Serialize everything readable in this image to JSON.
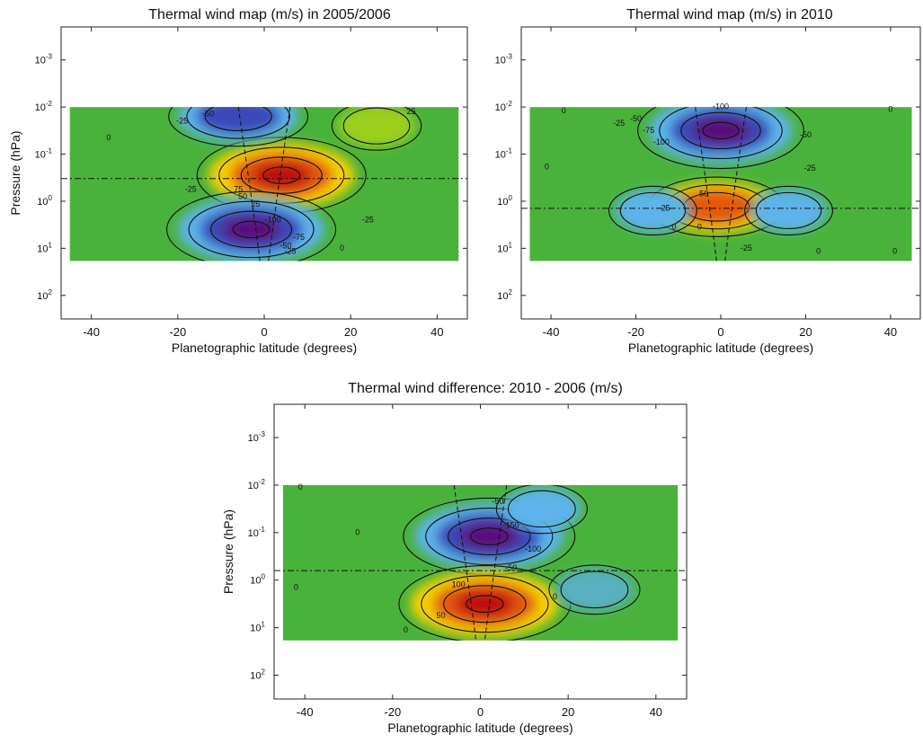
{
  "chart_data": [
    {
      "type": "heatmap",
      "title": "Thermal wind map (m/s) in 2005/2006",
      "xlabel": "Planetographic latitude (degrees)",
      "ylabel": "Pressure (hPa)",
      "xlim": [
        -47,
        47
      ],
      "x_ticks": [
        -40,
        -20,
        0,
        20,
        40
      ],
      "x_tick_labels": [
        "-40",
        "-20",
        "0",
        "20",
        "40"
      ],
      "y_scale": "log",
      "y_range_exponent": [
        -3.7,
        2.5
      ],
      "y_tick_exponents": [
        -3,
        -2,
        -1,
        0,
        1,
        2
      ],
      "data_extent": {
        "lat": [
          -45,
          45
        ],
        "pressure_exponent": [
          -2,
          1.27
        ]
      },
      "colormap": [
        "#5a0f7a",
        "#3a4ab8",
        "#5db3ea",
        "#49b23a",
        "#9bd01c",
        "#f4d000",
        "#e45a10",
        "#c01010"
      ],
      "colormap_note": "blue/purple = negative, green = ~0, yellow/red = positive",
      "features": [
        {
          "kind": "max",
          "lat": 4,
          "pressure_exponent": -0.55,
          "value": 125,
          "color": "#c01010"
        },
        {
          "kind": "min",
          "lat": -3,
          "pressure_exponent": 0.6,
          "value": -125,
          "color": "#5a0f7a"
        },
        {
          "kind": "min",
          "lat": -6,
          "pressure_exponent": -1.8,
          "value": -60,
          "color": "#3a3aa0"
        },
        {
          "kind": "max",
          "lat": 26,
          "pressure_exponent": -1.6,
          "value": 20,
          "color": "#9bd01c"
        }
      ],
      "contour_labels": [
        {
          "text": "0",
          "lat": -36,
          "pressure_exponent": -1.3
        },
        {
          "text": "-25",
          "lat": -19,
          "pressure_exponent": -1.65
        },
        {
          "text": "-50",
          "lat": -13,
          "pressure_exponent": -1.8
        },
        {
          "text": "25",
          "lat": 34,
          "pressure_exponent": -1.85
        },
        {
          "text": "-25",
          "lat": -17,
          "pressure_exponent": -0.2
        },
        {
          "text": "75",
          "lat": -6,
          "pressure_exponent": -0.2
        },
        {
          "text": "50",
          "lat": -5,
          "pressure_exponent": -0.05
        },
        {
          "text": "25",
          "lat": -2,
          "pressure_exponent": 0.12
        },
        {
          "text": "-100",
          "lat": 2,
          "pressure_exponent": 0.45
        },
        {
          "text": "-75",
          "lat": 8,
          "pressure_exponent": 0.82
        },
        {
          "text": "-50",
          "lat": 5,
          "pressure_exponent": 1.0
        },
        {
          "text": "-25",
          "lat": 6,
          "pressure_exponent": 1.12
        },
        {
          "text": "0",
          "lat": 18,
          "pressure_exponent": 1.05
        },
        {
          "text": "-25",
          "lat": 24,
          "pressure_exponent": 0.45
        }
      ],
      "dash_dot_line_pressure_exponent": -0.48
    },
    {
      "type": "heatmap",
      "title": "Thermal wind map (m/s) in 2010",
      "xlabel": "Planetographic latitude (degrees)",
      "ylabel": "",
      "xlim": [
        -47,
        47
      ],
      "x_ticks": [
        -40,
        -20,
        0,
        20,
        40
      ],
      "x_tick_labels": [
        "-40",
        "-20",
        "0",
        "20",
        "40"
      ],
      "y_scale": "log",
      "y_range_exponent": [
        -3.7,
        2.5
      ],
      "y_tick_exponents": [
        -3,
        -2,
        -1,
        0,
        1,
        2
      ],
      "data_extent": {
        "lat": [
          -45,
          45
        ],
        "pressure_exponent": [
          -2,
          1.27
        ]
      },
      "colormap": [
        "#5a0f7a",
        "#3a4ab8",
        "#5db3ea",
        "#49b23a",
        "#9bd01c",
        "#f4d000",
        "#e45a10",
        "#c01010"
      ],
      "colormap_note": "blue/purple = negative, green = ~0, yellow/red = positive",
      "features": [
        {
          "kind": "min",
          "lat": 0,
          "pressure_exponent": -1.5,
          "value": -120,
          "color": "#4a0f78"
        },
        {
          "kind": "max",
          "lat": -1,
          "pressure_exponent": 0.12,
          "value": 75,
          "color": "#d83a12"
        },
        {
          "kind": "min",
          "lat": -16,
          "pressure_exponent": 0.2,
          "value": -20,
          "color": "#5db3ea"
        },
        {
          "kind": "min",
          "lat": 16,
          "pressure_exponent": 0.2,
          "value": -20,
          "color": "#5db3ea"
        }
      ],
      "contour_labels": [
        {
          "text": "-100",
          "lat": 0,
          "pressure_exponent": -1.95
        },
        {
          "text": "0",
          "lat": -37,
          "pressure_exponent": -1.87
        },
        {
          "text": "-25",
          "lat": -24,
          "pressure_exponent": -1.6
        },
        {
          "text": "-50",
          "lat": -20,
          "pressure_exponent": -1.7
        },
        {
          "text": "-75",
          "lat": -17,
          "pressure_exponent": -1.45
        },
        {
          "text": "-100",
          "lat": -14,
          "pressure_exponent": -1.2
        },
        {
          "text": "-50",
          "lat": 20,
          "pressure_exponent": -1.35
        },
        {
          "text": "-25",
          "lat": 21,
          "pressure_exponent": -0.65
        },
        {
          "text": "0",
          "lat": 40,
          "pressure_exponent": -1.9
        },
        {
          "text": "0",
          "lat": -41,
          "pressure_exponent": -0.68
        },
        {
          "text": "50",
          "lat": -4,
          "pressure_exponent": -0.1
        },
        {
          "text": "25",
          "lat": -13,
          "pressure_exponent": 0.2
        },
        {
          "text": "0",
          "lat": -11,
          "pressure_exponent": 0.6
        },
        {
          "text": "0",
          "lat": -5,
          "pressure_exponent": 0.6
        },
        {
          "text": "-25",
          "lat": 6,
          "pressure_exponent": 1.05
        },
        {
          "text": "0",
          "lat": 23,
          "pressure_exponent": 1.12
        },
        {
          "text": "0",
          "lat": 41,
          "pressure_exponent": 1.12
        }
      ],
      "dash_dot_line_pressure_exponent": 0.15
    },
    {
      "type": "heatmap",
      "title": "Thermal wind difference: 2010 - 2006 (m/s)",
      "xlabel": "Planetographic latitude (degrees)",
      "ylabel": "Pressure (hPa)",
      "xlim": [
        -47,
        47
      ],
      "x_ticks": [
        -40,
        -20,
        0,
        20,
        40
      ],
      "x_tick_labels": [
        "-40",
        "-20",
        "0",
        "20",
        "40"
      ],
      "y_scale": "log",
      "y_range_exponent": [
        -3.7,
        2.5
      ],
      "y_tick_exponents": [
        -3,
        -2,
        -1,
        0,
        1,
        2
      ],
      "data_extent": {
        "lat": [
          -45,
          45
        ],
        "pressure_exponent": [
          -2,
          1.27
        ]
      },
      "colormap": [
        "#5a0f7a",
        "#3a4ab8",
        "#5db3ea",
        "#49b23a",
        "#9bd01c",
        "#f4d000",
        "#e45a10",
        "#c01010"
      ],
      "colormap_note": "blue/purple = negative, green = ~0, yellow/red = positive",
      "features": [
        {
          "kind": "min",
          "lat": 2,
          "pressure_exponent": -0.92,
          "value": -170,
          "color": "#5a0f7a"
        },
        {
          "kind": "max",
          "lat": 1,
          "pressure_exponent": 0.5,
          "value": 160,
          "color": "#c01010"
        },
        {
          "kind": "min",
          "lat": 14,
          "pressure_exponent": -1.5,
          "value": -30,
          "color": "#5db3ea"
        },
        {
          "kind": "min",
          "lat": 26,
          "pressure_exponent": 0.2,
          "value": -10,
          "color": "#58b0c0"
        }
      ],
      "contour_labels": [
        {
          "text": "0",
          "lat": -41,
          "pressure_exponent": -1.9
        },
        {
          "text": "-50",
          "lat": 4,
          "pressure_exponent": -1.6
        },
        {
          "text": "-150",
          "lat": 7,
          "pressure_exponent": -1.1
        },
        {
          "text": "-100",
          "lat": 12,
          "pressure_exponent": -0.6
        },
        {
          "text": "-50",
          "lat": 7,
          "pressure_exponent": -0.2
        },
        {
          "text": "0",
          "lat": -28,
          "pressure_exponent": -0.95
        },
        {
          "text": "0",
          "lat": -42,
          "pressure_exponent": 0.2
        },
        {
          "text": "100",
          "lat": -5,
          "pressure_exponent": 0.15
        },
        {
          "text": "50",
          "lat": -9,
          "pressure_exponent": 0.8
        },
        {
          "text": "0",
          "lat": 17,
          "pressure_exponent": 0.4
        },
        {
          "text": "0",
          "lat": -17,
          "pressure_exponent": 1.1
        }
      ],
      "dash_dot_line_pressure_exponent": -0.2
    }
  ]
}
